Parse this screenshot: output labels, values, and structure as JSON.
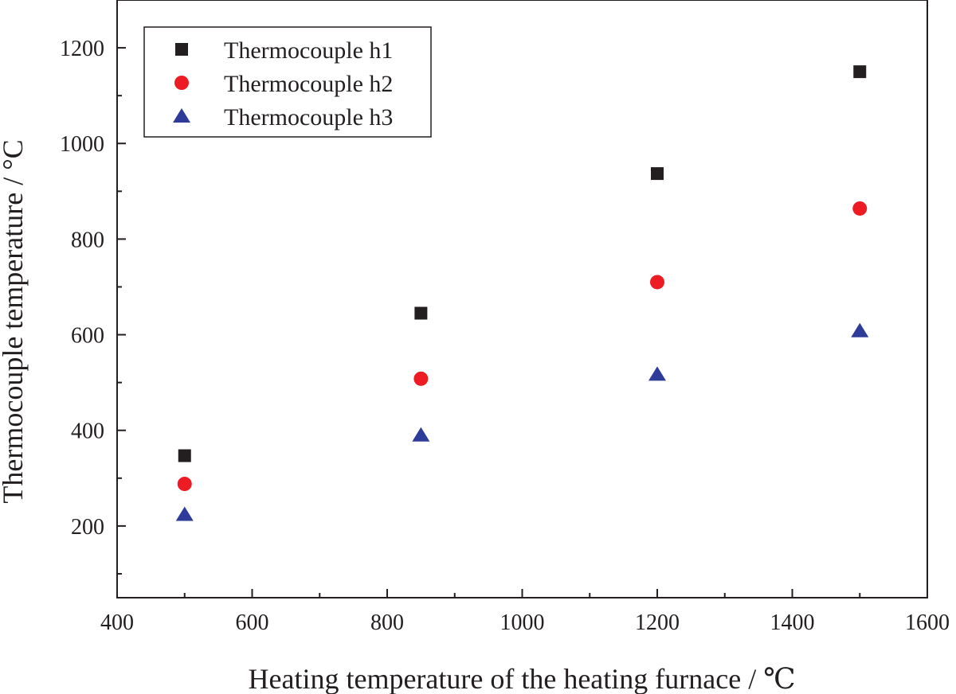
{
  "chart_data": {
    "type": "scatter",
    "title": "",
    "xlabel": "Heating temperature of the heating furnace / ℃",
    "ylabel": "Thermocouple temperature / °C",
    "xlim": [
      400,
      1600
    ],
    "ylim": [
      50,
      1300
    ],
    "x_ticks": [
      400,
      600,
      800,
      1000,
      1200,
      1400,
      1600
    ],
    "y_ticks": [
      200,
      400,
      600,
      800,
      1000,
      1200
    ],
    "x_tick_labels": [
      "400",
      "600",
      "800",
      "1000",
      "1200",
      "1400",
      "1600"
    ],
    "y_tick_labels": [
      "200",
      "400",
      "600",
      "800",
      "1000",
      "1200"
    ],
    "grid": false,
    "legend_position": "top-left",
    "x": [
      500,
      850,
      1200,
      1500
    ],
    "series": [
      {
        "name": "Thermocouple h1",
        "marker": "square",
        "color": "#231f20",
        "values": [
          347,
          645,
          937,
          1150
        ]
      },
      {
        "name": "Thermocouple h2",
        "marker": "circle",
        "color": "#ed1c24",
        "values": [
          288,
          508,
          710,
          864
        ]
      },
      {
        "name": "Thermocouple h3",
        "marker": "triangle",
        "color": "#2e3b98",
        "values": [
          224,
          390,
          517,
          608
        ]
      }
    ]
  }
}
